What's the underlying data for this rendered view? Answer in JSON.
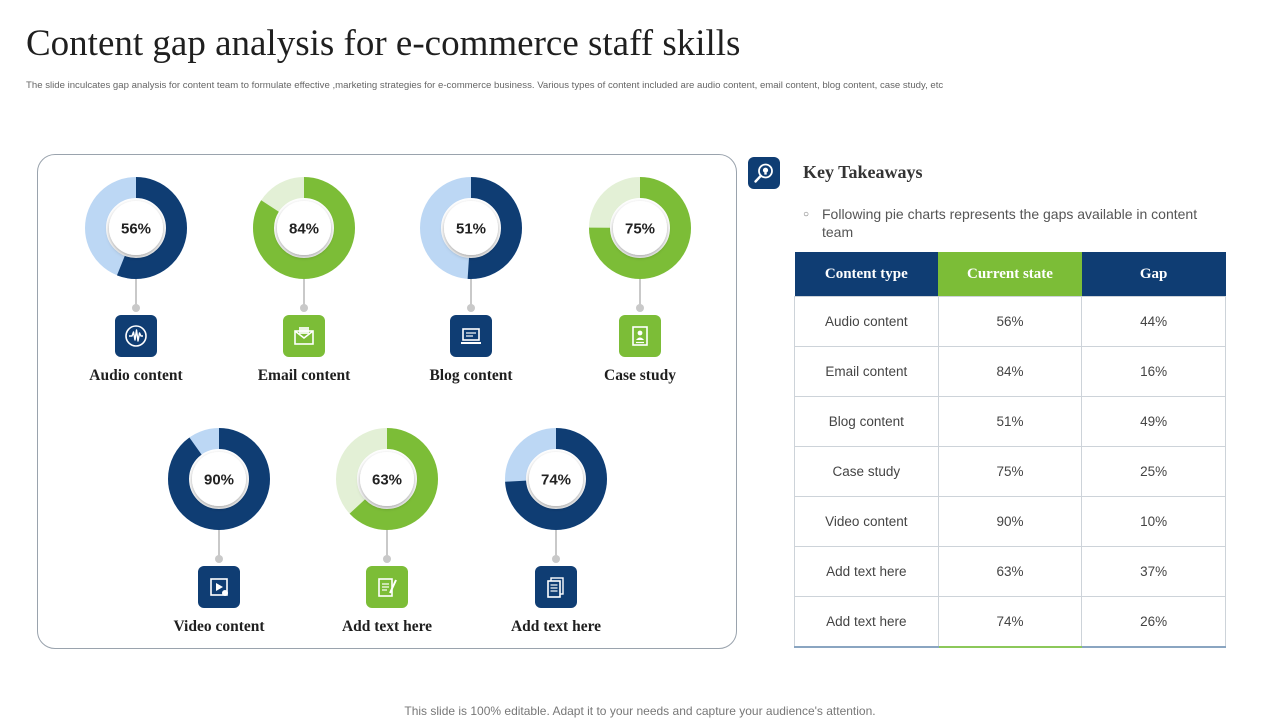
{
  "slide": {
    "title": "Content gap analysis for e-commerce staff skills",
    "subtitle": "The slide inculcates gap analysis for content team to formulate effective ,marketing strategies for e-commerce business. Various types of content included are audio content, email content, blog content, case study, etc",
    "footer": "This slide is 100% editable. Adapt it to your needs and capture your audience's attention."
  },
  "colors": {
    "navy": "#0f3d73",
    "navy_light": "#bcd7f4",
    "green": "#7cbd37",
    "green_light": "#e3f0d6"
  },
  "chart_data": [
    {
      "type": "pie",
      "name": "Audio content",
      "label": "56%",
      "value": 56,
      "theme": "navy",
      "icon": "audio-wave-icon"
    },
    {
      "type": "pie",
      "name": "Email content",
      "label": "84%",
      "value": 84,
      "theme": "green",
      "icon": "envelope-icon"
    },
    {
      "type": "pie",
      "name": "Blog content",
      "label": "51%",
      "value": 51,
      "theme": "navy",
      "icon": "blog-laptop-icon"
    },
    {
      "type": "pie",
      "name": "Case study",
      "label": "75%",
      "value": 75,
      "theme": "green",
      "icon": "case-study-document-icon"
    },
    {
      "type": "pie",
      "name": "Video content",
      "label": "90%",
      "value": 90,
      "theme": "navy",
      "icon": "video-play-icon"
    },
    {
      "type": "pie",
      "name": "Add text here",
      "label": "63%",
      "value": 63,
      "theme": "green",
      "icon": "notepad-pen-icon"
    },
    {
      "type": "pie",
      "name": "Add text here",
      "label": "74%",
      "value": 74,
      "theme": "navy",
      "icon": "documents-icon"
    }
  ],
  "key_takeaways": {
    "title": "Key Takeaways",
    "text": "Following pie charts represents the gaps available in content team",
    "icon": "magnifier-lightbulb-icon"
  },
  "table": {
    "headers": [
      "Content type",
      "Current state",
      "Gap"
    ],
    "rows": [
      [
        "Audio content",
        "56%",
        "44%"
      ],
      [
        "Email content",
        "84%",
        "16%"
      ],
      [
        "Blog content",
        "51%",
        "49%"
      ],
      [
        "Case study",
        "75%",
        "25%"
      ],
      [
        "Video content",
        "90%",
        "10%"
      ],
      [
        "Add text here",
        "63%",
        "37%"
      ],
      [
        "Add text here",
        "74%",
        "26%"
      ]
    ]
  }
}
